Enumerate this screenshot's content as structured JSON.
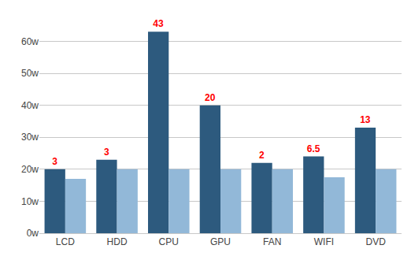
{
  "chart_data": {
    "type": "bar",
    "categories": [
      "LCD",
      "HDD",
      "CPU",
      "GPU",
      "FAN",
      "WIFI",
      "DVD"
    ],
    "series": [
      {
        "color": "#2d5a7e",
        "values": [
          20,
          23,
          63,
          40,
          22,
          24,
          33
        ]
      },
      {
        "color": "#92b8d8",
        "values": [
          17,
          20,
          20,
          20,
          20,
          17.5,
          20
        ]
      }
    ],
    "annotations": [
      {
        "category": "LCD",
        "text": "3",
        "color": "#ff0000"
      },
      {
        "category": "HDD",
        "text": "3",
        "color": "#ff0000"
      },
      {
        "category": "CPU",
        "text": "43",
        "color": "#ff0000"
      },
      {
        "category": "GPU",
        "text": "20",
        "color": "#ff0000"
      },
      {
        "category": "FAN",
        "text": "2",
        "color": "#ff0000"
      },
      {
        "category": "WIFI",
        "text": "6.5",
        "color": "#ff0000"
      },
      {
        "category": "DVD",
        "text": "13",
        "color": "#ff0000"
      }
    ],
    "ylim": [
      0,
      68
    ],
    "yticks": [
      {
        "value": 0,
        "label": "0w"
      },
      {
        "value": 10,
        "label": "10w"
      },
      {
        "value": 20,
        "label": "20w"
      },
      {
        "value": 30,
        "label": "30w"
      },
      {
        "value": 40,
        "label": "40w"
      },
      {
        "value": 50,
        "label": "50w"
      },
      {
        "value": 60,
        "label": "60w"
      }
    ],
    "grid": true
  }
}
